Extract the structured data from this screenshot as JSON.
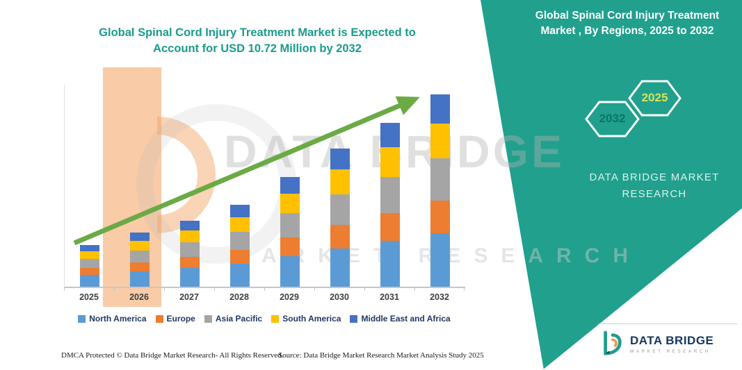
{
  "header": {
    "line1": "Global Spinal Cord Injury Treatment Market  is Expected to",
    "line2": "Account for USD 10.72 Million by 2032"
  },
  "right_panel": {
    "title": "Global Spinal Cord Injury Treatment Market , By Regions, 2025 to 2032",
    "hexagons": [
      {
        "label": "2032",
        "label_color": "#0E7466"
      },
      {
        "label": "2025",
        "label_color": "#D8E35A"
      }
    ],
    "brand_line1": "DATA BRIDGE MARKET",
    "brand_line2": "RESEARCH"
  },
  "watermark": {
    "line1": "DATA BRIDGE",
    "line2": "MARKET RESEARCH"
  },
  "colors": {
    "teal_panel": "#20A08D",
    "title_teal": "#1B9C8B",
    "arrow_green": "#6BAA45",
    "watermark_orange": "#F4A05E"
  },
  "chart_data": {
    "type": "bar",
    "stacked": true,
    "title": "Global Spinal Cord Injury Treatment Market is Expected to Account for USD 10.72 Million by 2032",
    "unit": "USD Million",
    "categories": [
      "2025",
      "2026",
      "2027",
      "2028",
      "2029",
      "2030",
      "2031",
      "2032"
    ],
    "series": [
      {
        "name": "North America",
        "color": "#5B9BD5",
        "values": [
          0.66,
          0.85,
          1.04,
          1.29,
          1.71,
          2.15,
          2.57,
          3.0
        ]
      },
      {
        "name": "Europe",
        "color": "#ED7D31",
        "values": [
          0.4,
          0.52,
          0.63,
          0.78,
          1.04,
          1.3,
          1.56,
          1.82
        ]
      },
      {
        "name": "Asia Pacific",
        "color": "#A5A5A5",
        "values": [
          0.52,
          0.67,
          0.82,
          1.01,
          1.35,
          1.69,
          2.02,
          2.36
        ]
      },
      {
        "name": "South America",
        "color": "#FFC000",
        "values": [
          0.42,
          0.55,
          0.67,
          0.83,
          1.1,
          1.38,
          1.65,
          1.93
        ]
      },
      {
        "name": "Middle East and Africa",
        "color": "#4472C4",
        "values": [
          0.36,
          0.46,
          0.56,
          0.7,
          0.92,
          1.15,
          1.37,
          1.61
        ]
      }
    ],
    "totals": [
      2.36,
      3.05,
      3.72,
      4.61,
      6.12,
      7.67,
      9.17,
      10.72
    ],
    "ylim": [
      0,
      11
    ],
    "legend_position": "bottom",
    "trend_arrow": true
  },
  "footer": {
    "dmca": "DMCA Protected © Data Bridge Market Research-  All Rights Reserved.",
    "source": "Source: Data Bridge Market Research  Market Analysis Study 2025",
    "logo_title": "DATA BRIDGE",
    "logo_subtitle": "MARKET RESEARCH"
  }
}
